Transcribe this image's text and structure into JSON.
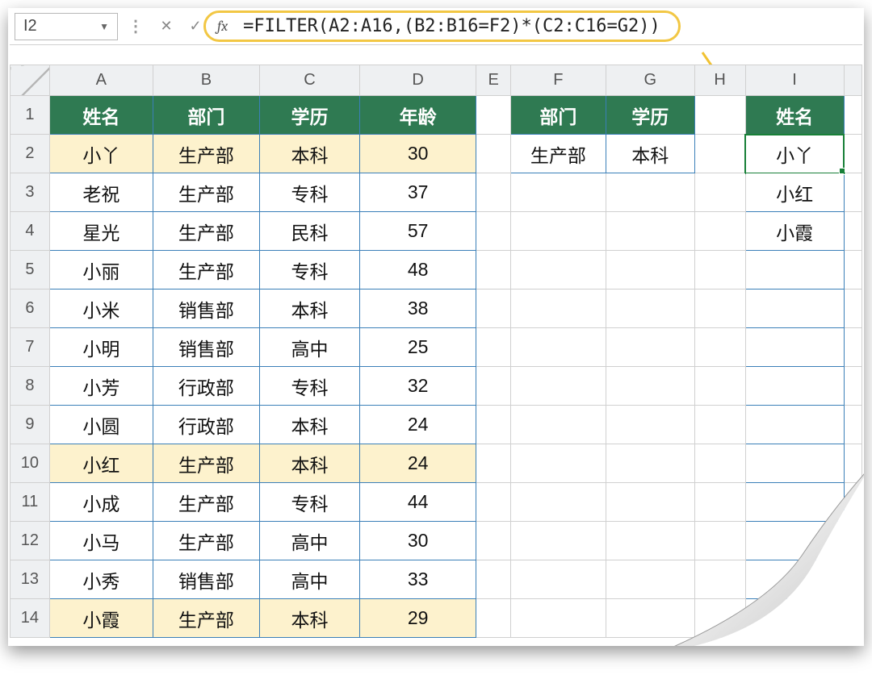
{
  "formula_bar": {
    "cell_ref": "I2",
    "formula": "=FILTER(A2:A16,(B2:B16=F2)*(C2:C16=G2))",
    "fx_label": "fx"
  },
  "columns": [
    "A",
    "B",
    "C",
    "D",
    "E",
    "F",
    "G",
    "H",
    "I"
  ],
  "rows": [
    "1",
    "2",
    "3",
    "4",
    "5",
    "6",
    "7",
    "8",
    "9",
    "10",
    "11",
    "12",
    "13",
    "14"
  ],
  "main_table": {
    "headers": {
      "A": "姓名",
      "B": "部门",
      "C": "学历",
      "D": "年龄"
    },
    "data": [
      {
        "A": "小丫",
        "B": "生产部",
        "C": "本科",
        "D": "30",
        "hl": true
      },
      {
        "A": "老祝",
        "B": "生产部",
        "C": "专科",
        "D": "37",
        "hl": false
      },
      {
        "A": "星光",
        "B": "生产部",
        "C": "民科",
        "D": "57",
        "hl": false
      },
      {
        "A": "小丽",
        "B": "生产部",
        "C": "专科",
        "D": "48",
        "hl": false
      },
      {
        "A": "小米",
        "B": "销售部",
        "C": "本科",
        "D": "38",
        "hl": false
      },
      {
        "A": "小明",
        "B": "销售部",
        "C": "高中",
        "D": "25",
        "hl": false
      },
      {
        "A": "小芳",
        "B": "行政部",
        "C": "专科",
        "D": "32",
        "hl": false
      },
      {
        "A": "小圆",
        "B": "行政部",
        "C": "本科",
        "D": "24",
        "hl": false
      },
      {
        "A": "小红",
        "B": "生产部",
        "C": "本科",
        "D": "24",
        "hl": true
      },
      {
        "A": "小成",
        "B": "生产部",
        "C": "专科",
        "D": "44",
        "hl": false
      },
      {
        "A": "小马",
        "B": "生产部",
        "C": "高中",
        "D": "30",
        "hl": false
      },
      {
        "A": "小秀",
        "B": "销售部",
        "C": "高中",
        "D": "33",
        "hl": false
      },
      {
        "A": "小霞",
        "B": "生产部",
        "C": "本科",
        "D": "29",
        "hl": true
      }
    ]
  },
  "criteria": {
    "headers": {
      "F": "部门",
      "G": "学历"
    },
    "values": {
      "F": "生产部",
      "G": "本科"
    }
  },
  "result": {
    "header": "姓名",
    "values": [
      "小丫",
      "小红",
      "小霞",
      "",
      "",
      "",
      "",
      "",
      "",
      "",
      "",
      "",
      ""
    ]
  },
  "colors": {
    "header_bg": "#2f7a52",
    "header_fg": "#ffffff",
    "highlight_bg": "#fdf2cd",
    "grid_border": "#d0d0d0",
    "data_border": "#3a7fb8",
    "pill_border": "#f2c744",
    "active_outline": "#188038",
    "arrow": "#f1c232"
  }
}
